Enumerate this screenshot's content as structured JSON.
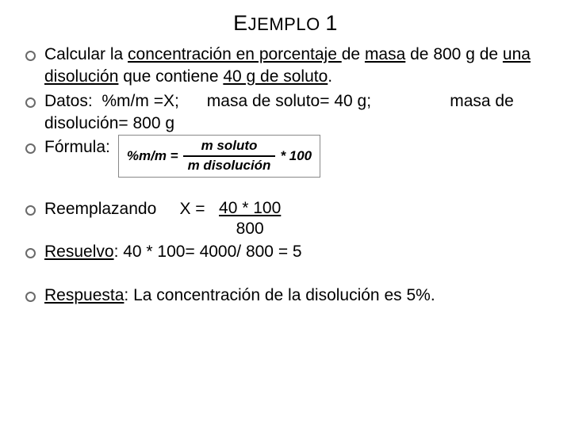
{
  "title": {
    "big": "E",
    "small": "JEMPLO ",
    "num": "1"
  },
  "b1": {
    "p1": "Calcular la ",
    "u1": "concentración en porcentaje ",
    "p2": "de ",
    "u2": "masa",
    "p3": " de 800 g de ",
    "u3": "una disolución",
    "p4": " que contiene ",
    "u4": "40 g de soluto",
    "p5": "."
  },
  "b2": {
    "lbl": "Datos:",
    "r1": "  %m/m =X;      masa de soluto= 40 g;                 masa de disolución= 800 g"
  },
  "b3": {
    "lbl": "Fórmula:",
    "lhs": "%m/m = ",
    "num": "m soluto",
    "den": "m disolución",
    "rhs": " * 100"
  },
  "b4": {
    "lbl": "Reemplazando",
    "x": "     X =   ",
    "top": "40  *  100",
    "bot": "800"
  },
  "b5": {
    "lbl": "Resuelvo",
    "rest": ":  40 * 100= 4000/ 800 = 5"
  },
  "b6": {
    "lbl": "Respuesta",
    "rest": ": La concentración  de la disolución es  5%."
  }
}
